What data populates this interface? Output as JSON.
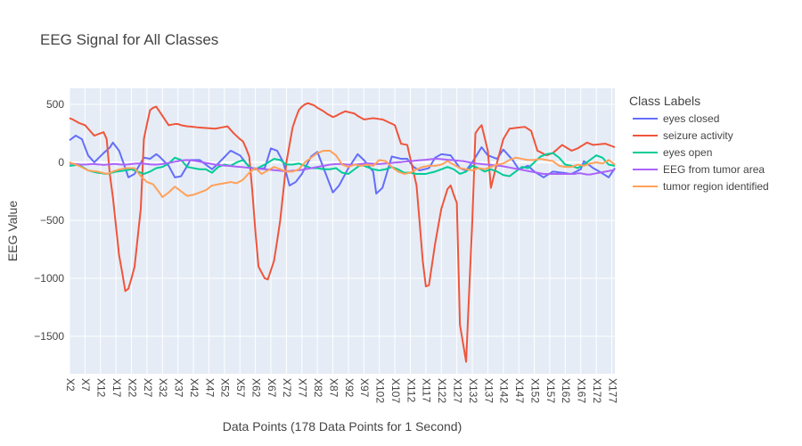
{
  "chart_data": {
    "type": "line",
    "title": "EEG Signal for All Classes",
    "x_label": "Data Points (178 Data Points for 1 Second)",
    "y_label": "EEG Value",
    "legend_title": "Class Labels",
    "legend_position": "right",
    "grid": true,
    "categories": [
      "X2",
      null,
      null,
      null,
      null,
      "X7",
      null,
      null,
      null,
      null,
      "X12",
      null,
      null,
      null,
      null,
      "X17",
      null,
      null,
      null,
      null,
      "X22",
      null,
      null,
      null,
      null,
      "X27",
      null,
      null,
      null,
      null,
      "X32",
      null,
      null,
      null,
      null,
      "X37",
      null,
      null,
      null,
      null,
      "X42",
      null,
      null,
      null,
      null,
      "X47",
      null,
      null,
      null,
      null,
      "X52",
      null,
      null,
      null,
      null,
      "X57",
      null,
      null,
      null,
      null,
      "X62",
      null,
      null,
      null,
      null,
      "X67",
      null,
      null,
      null,
      null,
      "X72",
      null,
      null,
      null,
      null,
      "X77",
      null,
      null,
      null,
      null,
      "X82",
      null,
      null,
      null,
      null,
      "X87",
      null,
      null,
      null,
      null,
      "X92",
      null,
      null,
      null,
      null,
      "X97",
      null,
      null,
      null,
      null,
      "X102",
      null,
      null,
      null,
      null,
      "X107",
      null,
      null,
      null,
      null,
      "X112",
      null,
      null,
      null,
      null,
      "X117",
      null,
      null,
      null,
      null,
      "X122",
      null,
      null,
      null,
      null,
      "X127",
      null,
      null,
      null,
      null,
      "X132",
      null,
      null,
      null,
      null,
      "X137",
      null,
      null,
      null,
      null,
      "X142",
      null,
      null,
      null,
      null,
      "X147",
      null,
      null,
      null,
      null,
      "X152",
      null,
      null,
      null,
      null,
      "X157",
      null,
      null,
      null,
      null,
      "X162",
      null,
      null,
      null,
      null,
      "X167",
      null,
      null,
      null,
      null,
      "X172",
      null,
      null,
      null,
      null,
      "X177",
      null
    ],
    "ylim": [
      -1823,
      638
    ],
    "yticks": [
      {
        "value": -1500,
        "label": "−1500"
      },
      {
        "value": -1000,
        "label": "−1000"
      },
      {
        "value": -500,
        "label": "−500"
      },
      0,
      500
    ],
    "series": [
      {
        "name": "eyes closed",
        "color": "#636efa",
        "values": [
          190,
          210,
          230,
          215,
          200,
          130,
          60,
          30,
          0,
          27,
          53,
          80,
          103,
          127,
          170,
          135,
          100,
          25,
          -50,
          -130,
          -115,
          -100,
          -50,
          -5,
          40,
          35,
          30,
          50,
          70,
          50,
          23,
          -3,
          -30,
          -80,
          -130,
          -125,
          -120,
          -75,
          -30,
          20,
          20,
          20,
          20,
          0,
          -20,
          -40,
          -60,
          -35,
          -10,
          18,
          45,
          73,
          100,
          87,
          73,
          60,
          27,
          -7,
          -40,
          -50,
          -60,
          -57,
          -53,
          -50,
          35,
          120,
          110,
          100,
          50,
          0,
          -100,
          -200,
          -185,
          -170,
          -135,
          -100,
          -50,
          0,
          50,
          70,
          90,
          20,
          -50,
          -120,
          -190,
          -260,
          -230,
          -200,
          -150,
          -100,
          -50,
          -10,
          30,
          70,
          45,
          20,
          -13,
          -47,
          -80,
          -270,
          -245,
          -220,
          -130,
          -40,
          50,
          43,
          37,
          30,
          30,
          30,
          -5,
          -40,
          -55,
          -70,
          -63,
          -57,
          -50,
          -5,
          40,
          55,
          70,
          67,
          63,
          60,
          23,
          -13,
          -50,
          -60,
          -70,
          -35,
          0,
          43,
          87,
          130,
          95,
          60,
          50,
          40,
          30,
          70,
          110,
          80,
          50,
          20,
          -20,
          -60,
          -50,
          -40,
          -30,
          -55,
          -80,
          -97,
          -113,
          -130,
          -113,
          -97,
          -80,
          -83,
          -87,
          -90,
          -93,
          -97,
          -100,
          -87,
          -73,
          -60,
          10,
          -10,
          -30,
          -50,
          -65,
          -80,
          -97,
          -113,
          -130,
          -90,
          -50
        ]
      },
      {
        "name": "seizure activity",
        "color": "#ef553b",
        "values": [
          380,
          370,
          355,
          340,
          330,
          320,
          290,
          260,
          230,
          240,
          250,
          260,
          200,
          -100,
          -300,
          -550,
          -800,
          -950,
          -1110,
          -1090,
          -1000,
          -900,
          -650,
          -400,
          200,
          330,
          450,
          470,
          480,
          440,
          400,
          360,
          320,
          325,
          330,
          330,
          320,
          315,
          310,
          308,
          305,
          302,
          300,
          298,
          296,
          294,
          292,
          290,
          295,
          300,
          305,
          310,
          280,
          250,
          225,
          200,
          180,
          120,
          50,
          -250,
          -600,
          -900,
          -950,
          -1000,
          -1010,
          -930,
          -850,
          -680,
          -500,
          -250,
          0,
          150,
          300,
          380,
          450,
          480,
          500,
          510,
          500,
          490,
          470,
          455,
          440,
          420,
          405,
          390,
          400,
          415,
          428,
          440,
          433,
          427,
          420,
          400,
          385,
          370,
          373,
          377,
          380,
          377,
          373,
          370,
          358,
          345,
          333,
          320,
          240,
          160,
          155,
          150,
          30,
          -85,
          -200,
          -520,
          -850,
          -1070,
          -1060,
          -880,
          -700,
          -550,
          -400,
          -315,
          -230,
          -200,
          -280,
          -350,
          -1400,
          -1560,
          -1720,
          -1100,
          -500,
          250,
          290,
          320,
          210,
          100,
          -220,
          -110,
          0,
          100,
          200,
          245,
          290,
          293,
          297,
          300,
          303,
          305,
          288,
          270,
          185,
          100,
          87,
          73,
          60,
          70,
          80,
          103,
          127,
          150,
          133,
          117,
          100,
          110,
          120,
          137,
          153,
          170,
          160,
          150,
          153,
          155,
          158,
          160,
          150,
          140,
          130
        ]
      },
      {
        "name": "eyes open",
        "color": "#00cc96",
        "values": [
          -30,
          -27,
          -23,
          -20,
          -37,
          -53,
          -70,
          -77,
          -83,
          -90,
          -93,
          -97,
          -100,
          -93,
          -87,
          -80,
          -77,
          -73,
          -70,
          -65,
          -60,
          -70,
          -80,
          -90,
          -100,
          -90,
          -80,
          -65,
          -50,
          -45,
          -40,
          -25,
          -10,
          15,
          40,
          30,
          20,
          -10,
          -40,
          -45,
          -50,
          -55,
          -60,
          -60,
          -60,
          -75,
          -90,
          -65,
          -40,
          -30,
          -20,
          -25,
          -30,
          -15,
          0,
          10,
          20,
          -10,
          -40,
          -50,
          -60,
          -47,
          -33,
          -20,
          -3,
          13,
          30,
          25,
          20,
          0,
          -20,
          -20,
          -20,
          -15,
          -10,
          -20,
          -30,
          -40,
          -50,
          -50,
          -50,
          -55,
          -60,
          -60,
          -60,
          -55,
          -50,
          -70,
          -90,
          -95,
          -100,
          -80,
          -60,
          -40,
          -20,
          -30,
          -40,
          -50,
          -60,
          -65,
          -70,
          -65,
          -60,
          -50,
          -40,
          -50,
          -60,
          -75,
          -90,
          -90,
          -90,
          -95,
          -100,
          -100,
          -100,
          -100,
          -93,
          -87,
          -80,
          -70,
          -60,
          -50,
          -40,
          -50,
          -60,
          -80,
          -100,
          -90,
          -80,
          -55,
          -30,
          -40,
          -50,
          -65,
          -80,
          -70,
          -60,
          -70,
          -80,
          -95,
          -110,
          -115,
          -120,
          -100,
          -80,
          -60,
          -40,
          -45,
          -50,
          -25,
          0,
          25,
          50,
          60,
          70,
          75,
          80,
          60,
          40,
          10,
          -20,
          -25,
          -30,
          -40,
          -50,
          -35,
          -20,
          0,
          20,
          40,
          60,
          50,
          40,
          10,
          -20,
          -25,
          -30
        ]
      },
      {
        "name": "EEG from tumor area",
        "color": "#ab63fa",
        "values": [
          -10,
          -12,
          -15,
          -18,
          -20,
          -20,
          -18,
          -15,
          -15,
          -18,
          -20,
          -22,
          -20,
          -18,
          -15,
          -15,
          -18,
          -20,
          -20,
          -18,
          -15,
          -12,
          -10,
          -10,
          -12,
          -15,
          -18,
          -20,
          -20,
          -18,
          -15,
          -10,
          -5,
          0,
          5,
          10,
          15,
          18,
          20,
          18,
          15,
          10,
          5,
          0,
          -5,
          -10,
          -15,
          -20,
          -22,
          -25,
          -28,
          -30,
          -32,
          -35,
          -38,
          -40,
          -42,
          -45,
          -48,
          -50,
          -52,
          -55,
          -58,
          -60,
          -62,
          -65,
          -68,
          -70,
          -72,
          -75,
          -75,
          -75,
          -72,
          -70,
          -68,
          -65,
          -60,
          -55,
          -50,
          -45,
          -40,
          -35,
          -30,
          -25,
          -20,
          -18,
          -15,
          -15,
          -15,
          -18,
          -20,
          -22,
          -20,
          -18,
          -15,
          -12,
          -10,
          -10,
          -12,
          -15,
          -15,
          -12,
          -10,
          -8,
          -5,
          -2,
          0,
          2,
          5,
          8,
          10,
          12,
          15,
          18,
          20,
          22,
          25,
          28,
          30,
          30,
          28,
          25,
          22,
          20,
          18,
          15,
          12,
          10,
          5,
          0,
          -5,
          -10,
          -12,
          -15,
          -18,
          -20,
          -22,
          -25,
          -28,
          -30,
          -35,
          -40,
          -45,
          -50,
          -55,
          -60,
          -65,
          -70,
          -75,
          -80,
          -85,
          -90,
          -95,
          -100,
          -100,
          -100,
          -100,
          -100,
          -100,
          -100,
          -100,
          -100,
          -100,
          -100,
          -95,
          -95,
          -100,
          -105,
          -105,
          -100,
          -95,
          -90,
          -85,
          -80,
          -75,
          -70,
          -65
        ]
      },
      {
        "name": "tumor region identified",
        "color": "#ffa15a",
        "values": [
          0,
          -10,
          -20,
          -30,
          -43,
          -57,
          -70,
          -73,
          -77,
          -80,
          -87,
          -93,
          -100,
          -90,
          -80,
          -70,
          -63,
          -57,
          -50,
          -50,
          -50,
          -50,
          -85,
          -120,
          -145,
          -170,
          -180,
          -190,
          -225,
          -260,
          -300,
          -280,
          -260,
          -235,
          -210,
          -230,
          -250,
          -270,
          -290,
          -285,
          -280,
          -270,
          -260,
          -250,
          -240,
          -220,
          -200,
          -195,
          -190,
          -185,
          -180,
          -175,
          -170,
          -175,
          -180,
          -165,
          -150,
          -120,
          -90,
          -70,
          -50,
          -75,
          -100,
          -85,
          -70,
          -55,
          -40,
          -50,
          -60,
          -70,
          -80,
          -80,
          -80,
          -70,
          -60,
          -30,
          0,
          20,
          40,
          60,
          80,
          90,
          100,
          100,
          100,
          80,
          60,
          20,
          -20,
          -30,
          -40,
          -30,
          -20,
          -25,
          -30,
          -25,
          -20,
          -25,
          -30,
          -5,
          20,
          15,
          10,
          -15,
          -40,
          -60,
          -80,
          -90,
          -100,
          -95,
          -90,
          -75,
          -60,
          -50,
          -40,
          -35,
          -30,
          -30,
          -30,
          -25,
          -20,
          -5,
          10,
          -5,
          -20,
          -35,
          -50,
          -55,
          -60,
          -65,
          -70,
          -60,
          -50,
          -55,
          -60,
          -50,
          -40,
          -30,
          -20,
          -15,
          -10,
          5,
          20,
          30,
          40,
          35,
          30,
          25,
          20,
          20,
          20,
          25,
          30,
          25,
          20,
          15,
          10,
          -10,
          -30,
          -35,
          -40,
          -40,
          -40,
          -30,
          -20,
          -25,
          -30,
          -20,
          -10,
          -5,
          0,
          -5,
          -10,
          5,
          20,
          0,
          -20
        ]
      }
    ]
  }
}
